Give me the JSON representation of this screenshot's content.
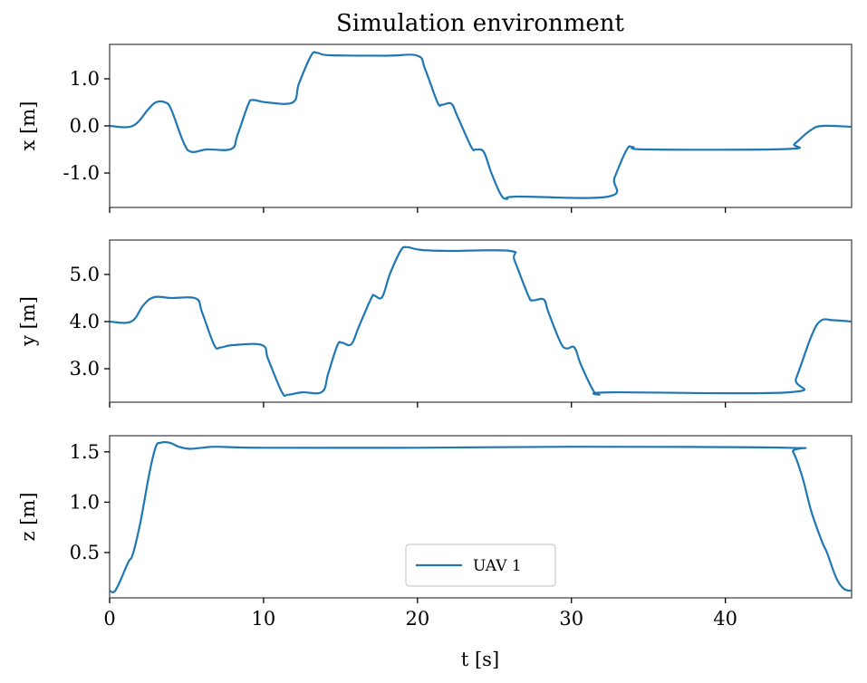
{
  "chart_data": [
    {
      "type": "line",
      "title": "Simulation environment",
      "xlabel": "",
      "ylabel": "x [m]",
      "xlim": [
        0,
        48.2
      ],
      "ylim": [
        -1.73,
        1.73
      ],
      "yticks": [
        1.0,
        0.0,
        -1.0
      ],
      "ytick_labels": [
        "1.0",
        "0.0",
        "-1.0"
      ],
      "xticks": [
        0,
        10,
        20,
        30,
        40
      ],
      "series": [
        {
          "name": "UAV 1",
          "color": "#1f77b4",
          "points": [
            [
              0,
              0
            ],
            [
              1.5,
              0
            ],
            [
              2.5,
              0.35
            ],
            [
              3.0,
              0.5
            ],
            [
              3.6,
              0.5
            ],
            [
              4.0,
              0.35
            ],
            [
              4.8,
              -0.35
            ],
            [
              5.3,
              -0.55
            ],
            [
              6.3,
              -0.5
            ],
            [
              7.9,
              -0.49
            ],
            [
              8.3,
              -0.2
            ],
            [
              9.0,
              0.45
            ],
            [
              9.3,
              0.55
            ],
            [
              10.2,
              0.5
            ],
            [
              11.9,
              0.5
            ],
            [
              12.3,
              0.9
            ],
            [
              13.1,
              1.5
            ],
            [
              13.5,
              1.55
            ],
            [
              14.3,
              1.5
            ],
            [
              18,
              1.49
            ],
            [
              20.0,
              1.49
            ],
            [
              20.5,
              1.2
            ],
            [
              21.3,
              0.5
            ],
            [
              21.6,
              0.45
            ],
            [
              22.2,
              0.47
            ],
            [
              22.6,
              0.2
            ],
            [
              23.5,
              -0.45
            ],
            [
              23.8,
              -0.5
            ],
            [
              24.3,
              -0.55
            ],
            [
              24.8,
              -1.0
            ],
            [
              25.4,
              -1.45
            ],
            [
              25.8,
              -1.55
            ],
            [
              26.5,
              -1.5
            ],
            [
              32.4,
              -1.5
            ],
            [
              32.8,
              -1.1
            ],
            [
              33.6,
              -0.5
            ],
            [
              34.0,
              -0.45
            ],
            [
              35,
              -0.5
            ],
            [
              44.0,
              -0.49
            ],
            [
              44.5,
              -0.38
            ],
            [
              45.5,
              -0.1
            ],
            [
              46.3,
              0.0
            ],
            [
              48.2,
              -0.02
            ]
          ]
        }
      ]
    },
    {
      "type": "line",
      "xlabel": "",
      "ylabel": "y [m]",
      "xlim": [
        0,
        48.2
      ],
      "ylim": [
        2.29,
        5.73
      ],
      "yticks": [
        5.0,
        4.0,
        3.0
      ],
      "ytick_labels": [
        "5.0",
        "4.0",
        "3.0"
      ],
      "xticks": [
        0,
        10,
        20,
        30,
        40
      ],
      "series": [
        {
          "name": "UAV 1",
          "color": "#1f77b4",
          "points": [
            [
              0,
              4
            ],
            [
              1.4,
              4
            ],
            [
              2.2,
              4.35
            ],
            [
              2.9,
              4.52
            ],
            [
              4,
              4.5
            ],
            [
              5.6,
              4.49
            ],
            [
              6.0,
              4.2
            ],
            [
              6.8,
              3.5
            ],
            [
              7.2,
              3.45
            ],
            [
              8,
              3.5
            ],
            [
              9.9,
              3.5
            ],
            [
              10.3,
              3.2
            ],
            [
              11.2,
              2.5
            ],
            [
              11.6,
              2.45
            ],
            [
              12.5,
              2.5
            ],
            [
              13.8,
              2.51
            ],
            [
              14.2,
              2.9
            ],
            [
              14.8,
              3.5
            ],
            [
              15.1,
              3.55
            ],
            [
              15.7,
              3.52
            ],
            [
              16.2,
              3.9
            ],
            [
              17.0,
              4.5
            ],
            [
              17.2,
              4.55
            ],
            [
              17.7,
              4.52
            ],
            [
              18.2,
              5.0
            ],
            [
              18.9,
              5.5
            ],
            [
              19.3,
              5.58
            ],
            [
              20.2,
              5.52
            ],
            [
              22,
              5.5
            ],
            [
              26.0,
              5.5
            ],
            [
              26.3,
              5.3
            ],
            [
              27.2,
              4.55
            ],
            [
              27.5,
              4.45
            ],
            [
              28.2,
              4.47
            ],
            [
              28.5,
              4.2
            ],
            [
              29.3,
              3.55
            ],
            [
              29.7,
              3.43
            ],
            [
              30.2,
              3.45
            ],
            [
              30.6,
              3.1
            ],
            [
              31.4,
              2.55
            ],
            [
              31.8,
              2.45
            ],
            [
              32.6,
              2.5
            ],
            [
              44.1,
              2.5
            ],
            [
              44.6,
              2.8
            ],
            [
              45.6,
              3.7
            ],
            [
              46.2,
              4.02
            ],
            [
              47,
              4.03
            ],
            [
              48.2,
              4.0
            ]
          ]
        }
      ]
    },
    {
      "type": "line",
      "xlabel": "t [s]",
      "ylabel": "z [m]",
      "xlim": [
        0,
        48.2
      ],
      "ylim": [
        0.05,
        1.66
      ],
      "yticks": [
        1.5,
        1.0,
        0.5
      ],
      "ytick_labels": [
        "1.5",
        "1.0",
        "0.5"
      ],
      "xticks": [
        0,
        10,
        20,
        30,
        40
      ],
      "xtick_labels": [
        "0",
        "10",
        "20",
        "30",
        "40"
      ],
      "legend": {
        "position": "lower-center",
        "entries": [
          "UAV 1"
        ]
      },
      "series": [
        {
          "name": "UAV 1",
          "color": "#1f77b4",
          "points": [
            [
              0,
              0.12
            ],
            [
              0.4,
              0.13
            ],
            [
              1.2,
              0.4
            ],
            [
              1.5,
              0.48
            ],
            [
              2.0,
              0.8
            ],
            [
              2.6,
              1.3
            ],
            [
              3.0,
              1.55
            ],
            [
              3.3,
              1.59
            ],
            [
              3.9,
              1.59
            ],
            [
              4.5,
              1.55
            ],
            [
              5.2,
              1.53
            ],
            [
              6,
              1.54
            ],
            [
              7,
              1.55
            ],
            [
              10,
              1.54
            ],
            [
              20,
              1.54
            ],
            [
              30,
              1.55
            ],
            [
              44,
              1.54
            ],
            [
              44.4,
              1.5
            ],
            [
              45.0,
              1.25
            ],
            [
              45.6,
              0.9
            ],
            [
              46.3,
              0.6
            ],
            [
              46.6,
              0.5
            ],
            [
              47.2,
              0.25
            ],
            [
              47.7,
              0.14
            ],
            [
              48.2,
              0.12
            ]
          ]
        }
      ]
    }
  ]
}
